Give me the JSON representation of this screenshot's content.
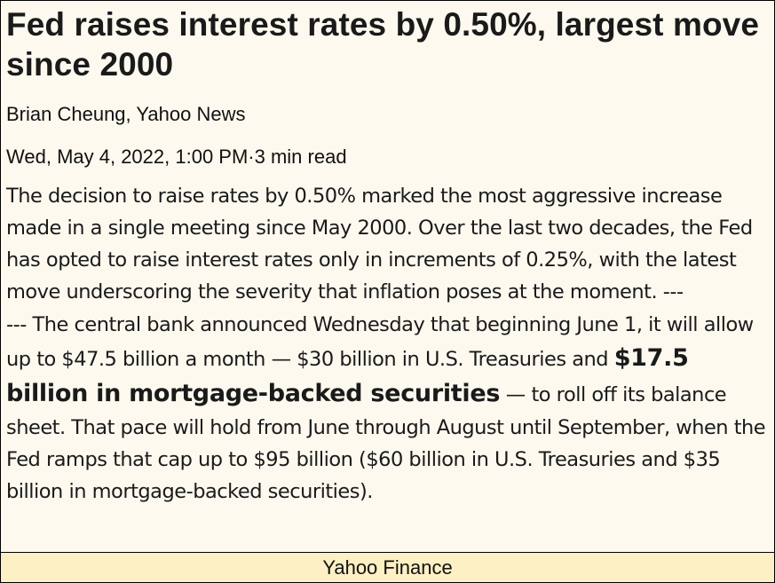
{
  "article": {
    "headline": "Fed raises interest rates by 0.50%, largest move since 2000",
    "byline": "Brian Cheung, Yahoo News",
    "dateline": "Wed, May 4, 2022, 1:00 PM·3 min read",
    "paragraph1": "The decision to raise rates by 0.50% marked the most aggressive increase made in a single meeting since May 2000. Over the last two decades, the Fed has opted to raise interest rates only in increments of 0.25%, with the latest move underscoring the severity that inflation poses at the moment. ---",
    "paragraph2": {
      "before": "--- The central bank announced Wednesday that beginning June 1, it will allow up to $47.5 billion a month — $30 billion in U.S. Treasuries and ",
      "emphasis": "$17.5 billion in mortgage-backed securities",
      "after": " — to roll off its balance sheet. That pace will hold from June through August until September, when the Fed ramps that cap up to $95 billion ($60 billion in U.S. Treasuries and $35 billion in mortgage-backed securities)."
    }
  },
  "footer": {
    "source": "Yahoo Finance"
  },
  "colors": {
    "background": "#fdf9ef",
    "footer_background": "#fdf0c4",
    "text": "#1a1a1a",
    "border": "#000000"
  }
}
